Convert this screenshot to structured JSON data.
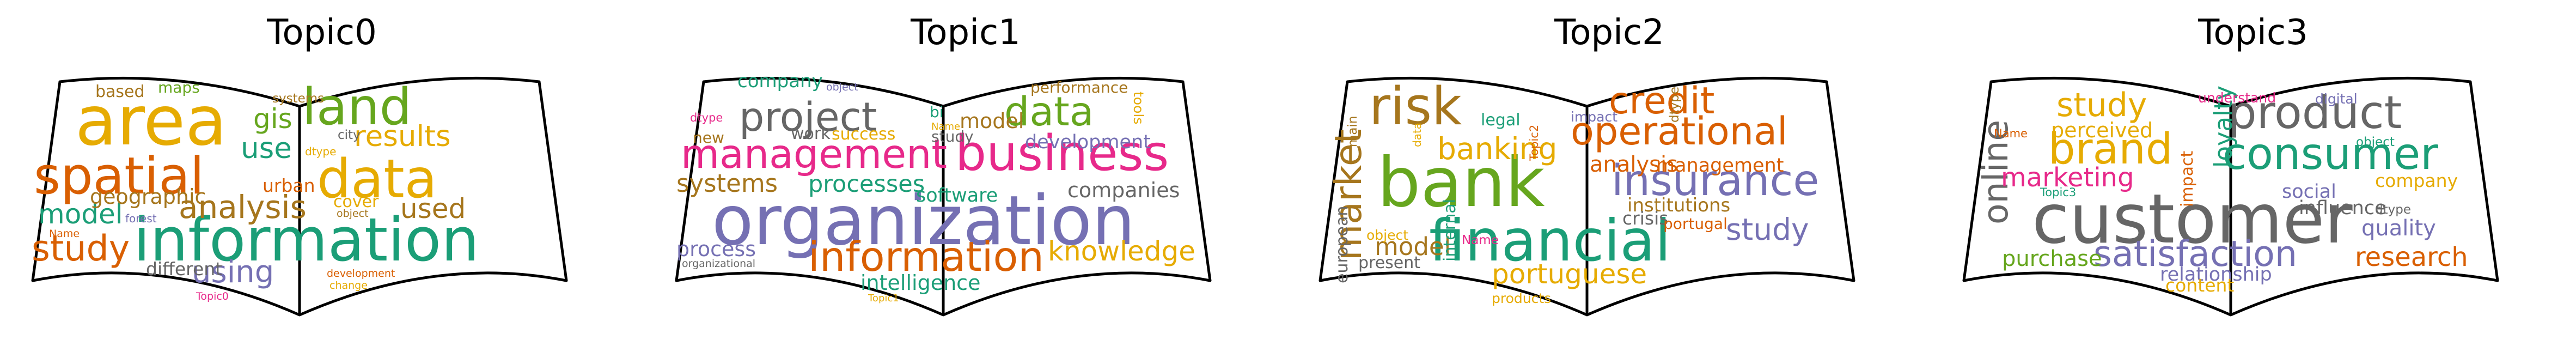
{
  "palette": {
    "teal": "#1b9e77",
    "orange": "#d95f02",
    "purple": "#7570b3",
    "magenta": "#e7298a",
    "green": "#66a61e",
    "gold": "#e6ab02",
    "brown": "#a6761d",
    "gray": "#666666"
  },
  "chart_data": [
    {
      "type": "wordcloud",
      "title": "Topic0",
      "words": [
        {
          "text": "area",
          "weight": 100,
          "color": "gold"
        },
        {
          "text": "information",
          "weight": 88,
          "color": "teal"
        },
        {
          "text": "spatial",
          "weight": 75,
          "color": "orange"
        },
        {
          "text": "data",
          "weight": 78,
          "color": "gold"
        },
        {
          "text": "land",
          "weight": 74,
          "color": "green"
        },
        {
          "text": "study",
          "weight": 52,
          "color": "orange"
        },
        {
          "text": "analysis",
          "weight": 46,
          "color": "brown"
        },
        {
          "text": "using",
          "weight": 45,
          "color": "purple"
        },
        {
          "text": "results",
          "weight": 42,
          "color": "gold"
        },
        {
          "text": "model",
          "weight": 40,
          "color": "teal"
        },
        {
          "text": "gis",
          "weight": 40,
          "color": "green"
        },
        {
          "text": "use",
          "weight": 42,
          "color": "teal"
        },
        {
          "text": "used",
          "weight": 40,
          "color": "brown"
        },
        {
          "text": "geographic",
          "weight": 30,
          "color": "brown"
        },
        {
          "text": "different",
          "weight": 26,
          "color": "gray"
        },
        {
          "text": "urban",
          "weight": 26,
          "color": "orange"
        },
        {
          "text": "cover",
          "weight": 24,
          "color": "gold"
        },
        {
          "text": "based",
          "weight": 24,
          "color": "brown"
        },
        {
          "text": "maps",
          "weight": 22,
          "color": "green"
        },
        {
          "text": "systems",
          "weight": 18,
          "color": "brown"
        },
        {
          "text": "city",
          "weight": 18,
          "color": "gray"
        },
        {
          "text": "dtype",
          "weight": 16,
          "color": "gold"
        },
        {
          "text": "object",
          "weight": 15,
          "color": "brown"
        },
        {
          "text": "forest",
          "weight": 16,
          "color": "purple"
        },
        {
          "text": "Name",
          "weight": 15,
          "color": "orange"
        },
        {
          "text": "development",
          "weight": 15,
          "color": "orange"
        },
        {
          "text": "change",
          "weight": 15,
          "color": "gold"
        },
        {
          "text": "Topic0",
          "weight": 15,
          "color": "magenta"
        }
      ]
    },
    {
      "type": "wordcloud",
      "title": "Topic1",
      "words": [
        {
          "text": "organization",
          "weight": 100,
          "color": "purple"
        },
        {
          "text": "business",
          "weight": 72,
          "color": "magenta"
        },
        {
          "text": "information",
          "weight": 60,
          "color": "orange"
        },
        {
          "text": "management",
          "weight": 58,
          "color": "magenta"
        },
        {
          "text": "project",
          "weight": 58,
          "color": "gray"
        },
        {
          "text": "data",
          "weight": 58,
          "color": "green"
        },
        {
          "text": "knowledge",
          "weight": 40,
          "color": "gold"
        },
        {
          "text": "systems",
          "weight": 36,
          "color": "brown"
        },
        {
          "text": "processes",
          "weight": 34,
          "color": "teal"
        },
        {
          "text": "process",
          "weight": 30,
          "color": "purple"
        },
        {
          "text": "intelligence",
          "weight": 30,
          "color": "teal"
        },
        {
          "text": "companies",
          "weight": 30,
          "color": "gray"
        },
        {
          "text": "software",
          "weight": 28,
          "color": "teal"
        },
        {
          "text": "model",
          "weight": 30,
          "color": "brown"
        },
        {
          "text": "company",
          "weight": 27,
          "color": "teal"
        },
        {
          "text": "development",
          "weight": 28,
          "color": "purple"
        },
        {
          "text": "success",
          "weight": 24,
          "color": "gold"
        },
        {
          "text": "work",
          "weight": 24,
          "color": "gray"
        },
        {
          "text": "new",
          "weight": 22,
          "color": "brown"
        },
        {
          "text": "performance",
          "weight": 22,
          "color": "brown"
        },
        {
          "text": "study",
          "weight": 22,
          "color": "gray"
        },
        {
          "text": "tools",
          "weight": 20,
          "color": "gold"
        },
        {
          "text": "bi",
          "weight": 22,
          "color": "teal"
        },
        {
          "text": "dtype",
          "weight": 17,
          "color": "magenta"
        },
        {
          "text": "object",
          "weight": 15,
          "color": "purple"
        },
        {
          "text": "Name",
          "weight": 14,
          "color": "gold"
        },
        {
          "text": "organizational",
          "weight": 15,
          "color": "gray"
        },
        {
          "text": "Topic1",
          "weight": 14,
          "color": "gold"
        }
      ]
    },
    {
      "type": "wordcloud",
      "title": "Topic2",
      "words": [
        {
          "text": "bank",
          "weight": 100,
          "color": "green"
        },
        {
          "text": "financial",
          "weight": 84,
          "color": "teal"
        },
        {
          "text": "risk",
          "weight": 76,
          "color": "brown"
        },
        {
          "text": "insurance",
          "weight": 62,
          "color": "purple"
        },
        {
          "text": "operational",
          "weight": 56,
          "color": "orange"
        },
        {
          "text": "credit",
          "weight": 54,
          "color": "orange"
        },
        {
          "text": "market",
          "weight": 54,
          "color": "brown"
        },
        {
          "text": "banking",
          "weight": 44,
          "color": "gold"
        },
        {
          "text": "study",
          "weight": 44,
          "color": "purple"
        },
        {
          "text": "portuguese",
          "weight": 40,
          "color": "gold"
        },
        {
          "text": "model",
          "weight": 36,
          "color": "brown"
        },
        {
          "text": "analysis",
          "weight": 32,
          "color": "orange"
        },
        {
          "text": "management",
          "weight": 28,
          "color": "orange"
        },
        {
          "text": "institutions",
          "weight": 27,
          "color": "brown"
        },
        {
          "text": "crisis",
          "weight": 26,
          "color": "gray"
        },
        {
          "text": "internal",
          "weight": 24,
          "color": "teal"
        },
        {
          "text": "present",
          "weight": 24,
          "color": "gray"
        },
        {
          "text": "european",
          "weight": 24,
          "color": "gray"
        },
        {
          "text": "legal",
          "weight": 24,
          "color": "teal"
        },
        {
          "text": "impact",
          "weight": 20,
          "color": "purple"
        },
        {
          "text": "portugal",
          "weight": 22,
          "color": "orange"
        },
        {
          "text": "products",
          "weight": 20,
          "color": "gold"
        },
        {
          "text": "object",
          "weight": 20,
          "color": "gold"
        },
        {
          "text": "dtype",
          "weight": 18,
          "color": "brown"
        },
        {
          "text": "main",
          "weight": 18,
          "color": "brown"
        },
        {
          "text": "Name",
          "weight": 18,
          "color": "magenta"
        },
        {
          "text": "data",
          "weight": 16,
          "color": "gold"
        },
        {
          "text": "Topic2",
          "weight": 17,
          "color": "orange"
        }
      ]
    },
    {
      "type": "wordcloud",
      "title": "Topic3",
      "words": [
        {
          "text": "customer",
          "weight": 100,
          "color": "gray"
        },
        {
          "text": "product",
          "weight": 66,
          "color": "gray"
        },
        {
          "text": "consumer",
          "weight": 64,
          "color": "teal"
        },
        {
          "text": "brand",
          "weight": 62,
          "color": "gold"
        },
        {
          "text": "satisfaction",
          "weight": 52,
          "color": "purple"
        },
        {
          "text": "online",
          "weight": 50,
          "color": "gray"
        },
        {
          "text": "study",
          "weight": 48,
          "color": "gold"
        },
        {
          "text": "research",
          "weight": 38,
          "color": "orange"
        },
        {
          "text": "loyalty",
          "weight": 36,
          "color": "teal"
        },
        {
          "text": "marketing",
          "weight": 38,
          "color": "magenta"
        },
        {
          "text": "quality",
          "weight": 32,
          "color": "purple"
        },
        {
          "text": "purchase",
          "weight": 32,
          "color": "green"
        },
        {
          "text": "perceived",
          "weight": 30,
          "color": "gold"
        },
        {
          "text": "influence",
          "weight": 28,
          "color": "gray"
        },
        {
          "text": "social",
          "weight": 28,
          "color": "purple"
        },
        {
          "text": "relationship",
          "weight": 28,
          "color": "purple"
        },
        {
          "text": "content",
          "weight": 26,
          "color": "gold"
        },
        {
          "text": "company",
          "weight": 26,
          "color": "gold"
        },
        {
          "text": "impact",
          "weight": 24,
          "color": "orange"
        },
        {
          "text": "understand",
          "weight": 20,
          "color": "magenta"
        },
        {
          "text": "digital",
          "weight": 20,
          "color": "purple"
        },
        {
          "text": "object",
          "weight": 18,
          "color": "teal"
        },
        {
          "text": "dtype",
          "weight": 18,
          "color": "gray"
        },
        {
          "text": "Name",
          "weight": 17,
          "color": "orange"
        },
        {
          "text": "Topic3",
          "weight": 17,
          "color": "teal"
        }
      ]
    }
  ]
}
